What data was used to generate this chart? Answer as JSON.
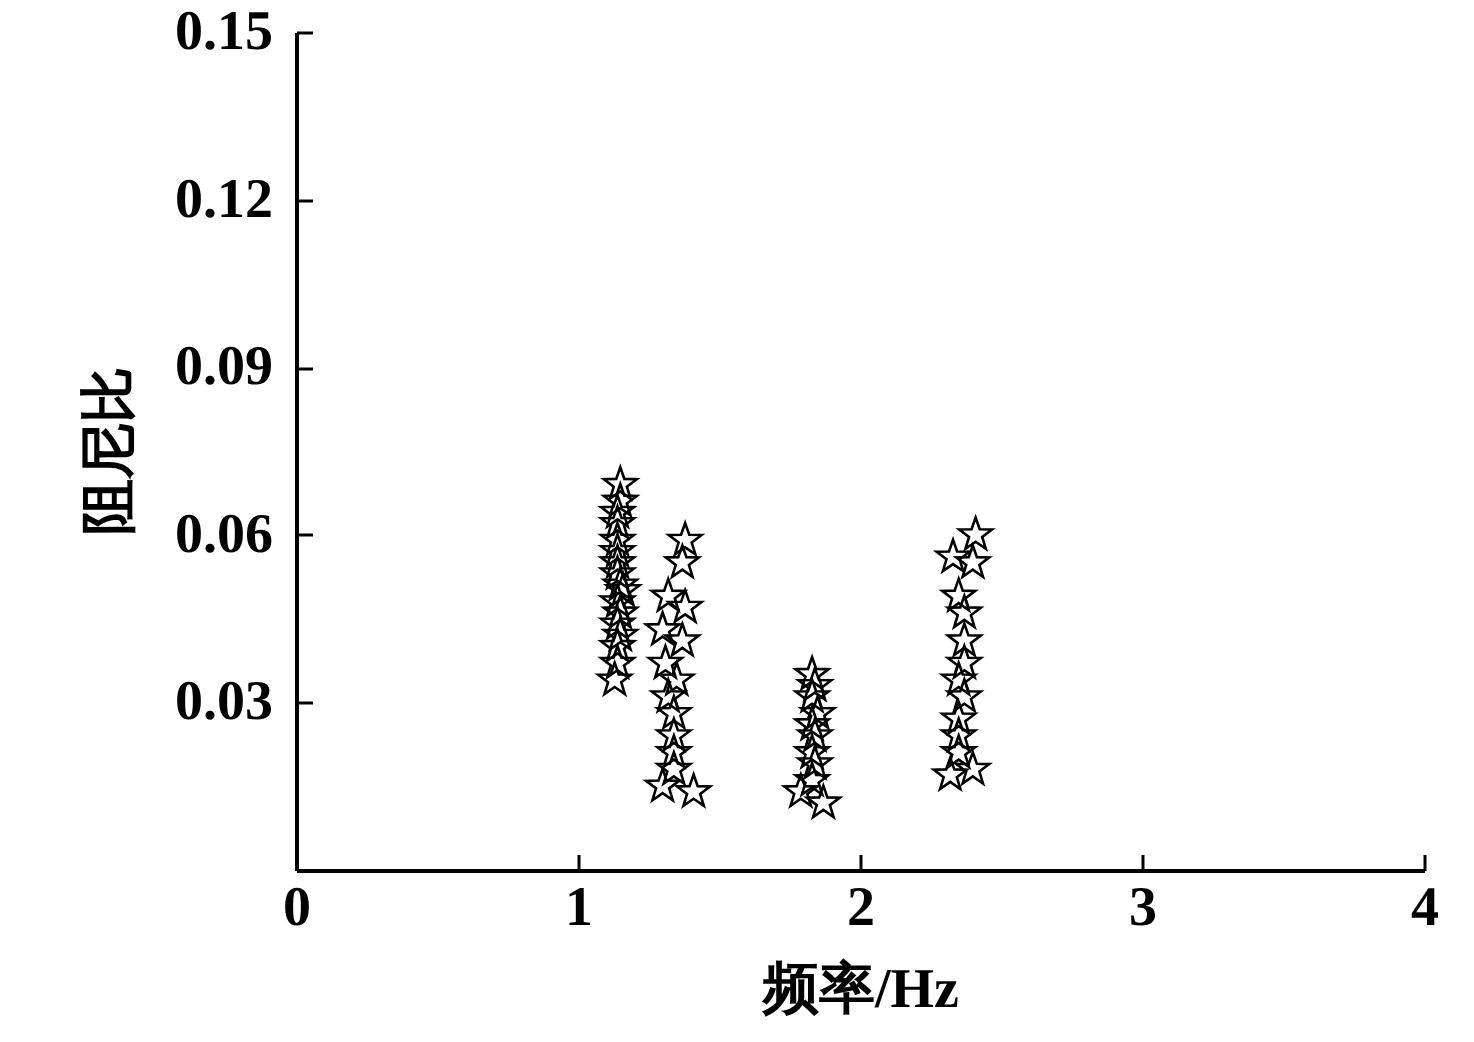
{
  "chart_data": {
    "type": "scatter",
    "xlabel": "频率/Hz",
    "ylabel": "阻尼比",
    "color": "#000000",
    "marker": "star",
    "x": [
      1.15,
      1.15,
      1.14,
      1.14,
      1.14,
      1.14,
      1.14,
      1.14,
      1.15,
      1.16,
      1.14,
      1.15,
      1.14,
      1.15,
      1.14,
      1.14,
      1.13,
      1.38,
      1.37,
      1.32,
      1.38,
      1.3,
      1.37,
      1.31,
      1.35,
      1.32,
      1.34,
      1.34,
      1.34,
      1.34,
      1.3,
      1.41,
      1.83,
      1.84,
      1.83,
      1.85,
      1.83,
      1.84,
      1.83,
      1.84,
      1.83,
      1.79,
      1.87,
      2.41,
      2.33,
      2.4,
      2.35,
      2.37,
      2.37,
      2.37,
      2.35,
      2.37,
      2.35,
      2.35,
      2.35,
      2.32,
      2.4
    ],
    "values": [
      0.069,
      0.066,
      0.064,
      0.062,
      0.059,
      0.057,
      0.055,
      0.053,
      0.051,
      0.05,
      0.048,
      0.046,
      0.044,
      0.042,
      0.04,
      0.037,
      0.034,
      0.059,
      0.055,
      0.049,
      0.047,
      0.043,
      0.041,
      0.037,
      0.034,
      0.031,
      0.028,
      0.024,
      0.021,
      0.018,
      0.015,
      0.014,
      0.035,
      0.033,
      0.031,
      0.028,
      0.026,
      0.024,
      0.021,
      0.019,
      0.016,
      0.014,
      0.012,
      0.06,
      0.056,
      0.055,
      0.049,
      0.046,
      0.041,
      0.037,
      0.034,
      0.031,
      0.027,
      0.024,
      0.021,
      0.017,
      0.018
    ],
    "xlim": [
      0,
      4
    ],
    "xticks": [
      0,
      1,
      2,
      3,
      4
    ],
    "ylim": [
      0,
      0.15
    ],
    "yticks": [
      0.03,
      0.06,
      0.09,
      0.12,
      0.15
    ]
  }
}
